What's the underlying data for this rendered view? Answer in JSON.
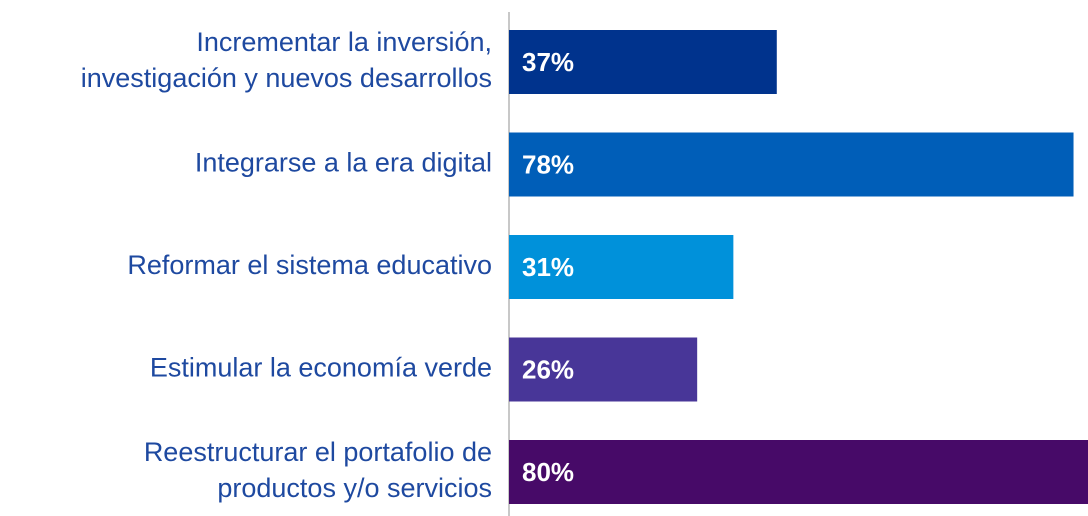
{
  "chart_data": {
    "type": "barh",
    "categories": [
      [
        "Incrementar la inversión,",
        "investigación y nuevos desarrollos"
      ],
      [
        "Integrarse a la era digital"
      ],
      [
        "Reformar el sistema educativo"
      ],
      [
        "Estimular la economía verde"
      ],
      [
        "Reestructurar el portafolio de",
        "productos y/o servicios"
      ]
    ],
    "values": [
      37,
      78,
      31,
      26,
      80
    ],
    "value_labels": [
      "37%",
      "78%",
      "31%",
      "26%",
      "80%"
    ],
    "colors": [
      "#00338d",
      "#005eb8",
      "#0091da",
      "#483698",
      "#470a68"
    ],
    "xlim": [
      0,
      80
    ]
  }
}
